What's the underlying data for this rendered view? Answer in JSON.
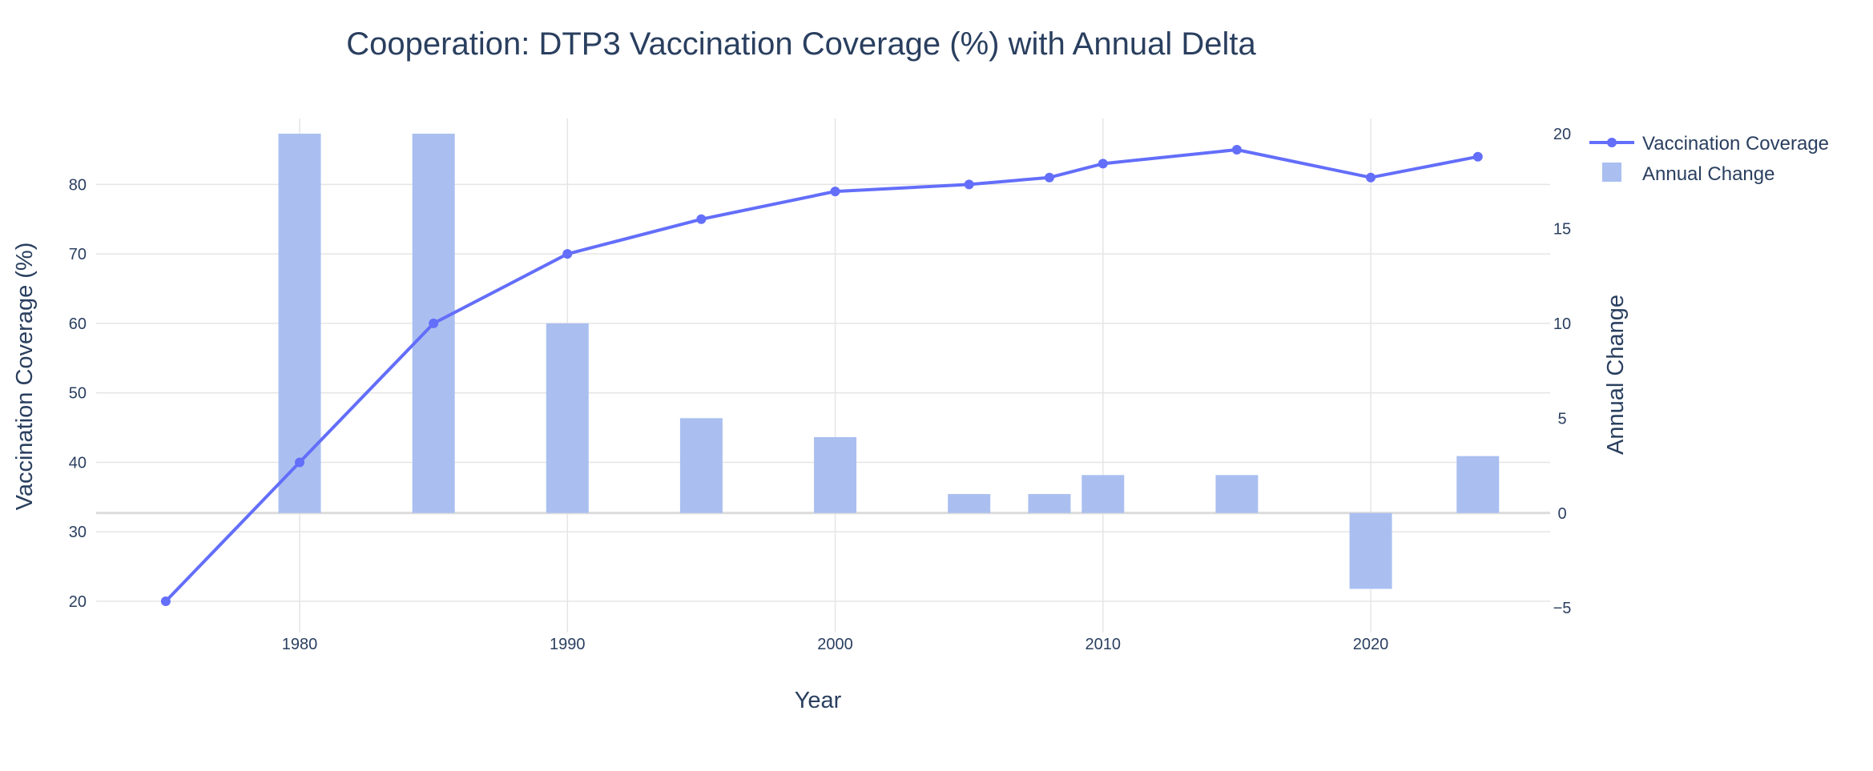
{
  "chart_data": {
    "type": "line+bar",
    "title": "Cooperation: DTP3 Vaccination Coverage (%) with Annual Delta",
    "xlabel": "Year",
    "ylabel": "Vaccination Coverage (%)",
    "y2label": "Annual Change",
    "xlim": [
      1972.4,
      2026.7
    ],
    "ylim": [
      15.5,
      89.5
    ],
    "y2lim": [
      -6.3,
      20.8
    ],
    "x_ticks": [
      1980,
      1990,
      2000,
      2010,
      2020
    ],
    "y_ticks": [
      20,
      30,
      40,
      50,
      60,
      70,
      80
    ],
    "y2_ticks": [
      -5,
      0,
      5,
      10,
      15,
      20
    ],
    "y2_tick_labels": [
      "−5",
      "0",
      "5",
      "10",
      "15",
      "20"
    ],
    "grid": true,
    "legend_position": "top-right",
    "series": [
      {
        "name": "Vaccination Coverage",
        "type": "line",
        "axis": "y",
        "color": "#636efa",
        "x": [
          1975,
          1980,
          1985,
          1990,
          1995,
          2000,
          2005,
          2008,
          2010,
          2015,
          2020,
          2024
        ],
        "values": [
          20,
          40,
          60,
          70,
          75,
          79,
          80,
          81,
          83,
          85,
          81,
          84
        ]
      },
      {
        "name": "Annual Change",
        "type": "bar",
        "axis": "y2",
        "color": "#aabff0",
        "x": [
          1980,
          1985,
          1990,
          1995,
          2000,
          2005,
          2008,
          2010,
          2015,
          2020,
          2024
        ],
        "values": [
          20,
          20,
          10,
          5,
          4,
          1,
          1,
          2,
          2,
          -4,
          3
        ]
      }
    ]
  }
}
